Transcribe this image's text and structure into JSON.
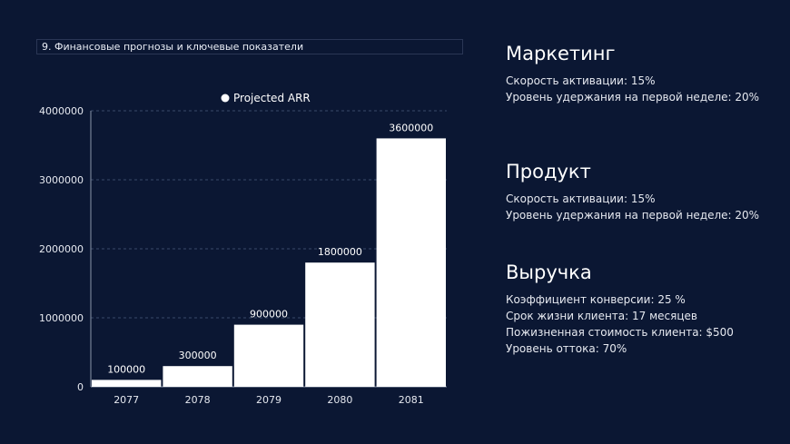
{
  "page": {
    "title": "9. Финансовые прогнозы и ключевые показатели"
  },
  "chart_data": {
    "type": "bar",
    "categories": [
      "2077",
      "2078",
      "2079",
      "2080",
      "2081"
    ],
    "series": [
      {
        "name": "Projected ARR",
        "values": [
          100000,
          300000,
          900000,
          1800000,
          3600000
        ]
      }
    ],
    "data_labels": [
      "100000",
      "300000",
      "900000",
      "1800000",
      "3600000"
    ],
    "y_ticks": [
      0,
      1000000,
      2000000,
      3000000,
      4000000
    ],
    "y_tick_labels": [
      "0",
      "1000000",
      "2000000",
      "3000000",
      "4000000"
    ],
    "ylim": [
      0,
      4000000
    ],
    "grid": "horizontal-dashed",
    "legend_position": "top-center",
    "bar_color": "#ffffff"
  },
  "sections": [
    {
      "heading": "Маркетинг",
      "lines": [
        "Скорость активации: 15%",
        "Уровень удержания на первой неделе: 20%"
      ]
    },
    {
      "heading": "Продукт",
      "lines": [
        "Скорость активации: 15%",
        "Уровень удержания на первой неделе: 20%"
      ]
    },
    {
      "heading": "Выручка",
      "lines": [
        "Коэффициент конверсии: 25 %",
        "Срок жизни клиента: 17 месяцев",
        "Пожизненная стоимость клиента: $500",
        "Уровень оттока: 70%"
      ]
    }
  ]
}
